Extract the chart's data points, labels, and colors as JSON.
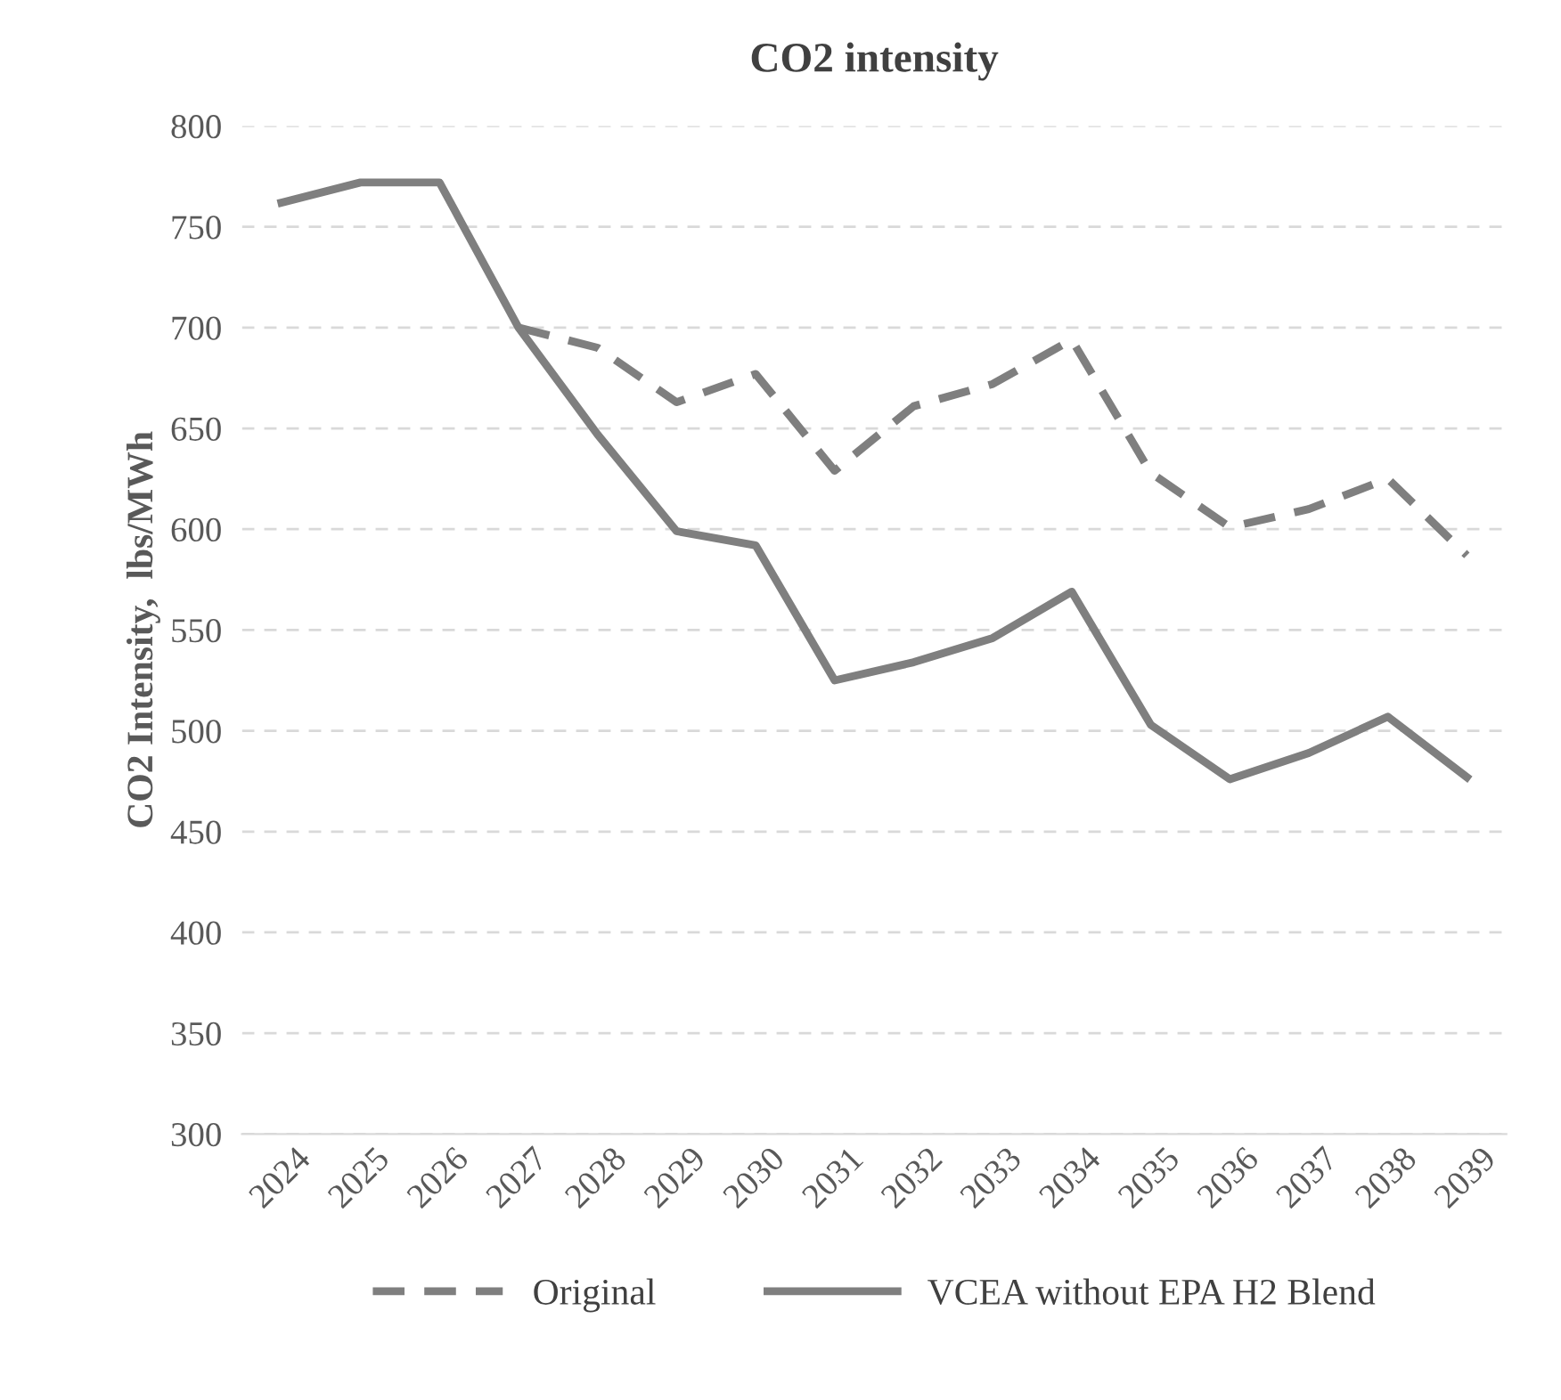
{
  "chart_data": {
    "type": "line",
    "title": "CO2 intensity",
    "ylabel": "CO2 Intensity,  lbs/MWh",
    "categories": [
      "2024",
      "2025",
      "2026",
      "2027",
      "2028",
      "2029",
      "2030",
      "2031",
      "2032",
      "2033",
      "2034",
      "2035",
      "2036",
      "2037",
      "2038",
      "2039"
    ],
    "series": [
      {
        "name": "Original",
        "color": "#7f7f7f",
        "line_style": "dashed",
        "values": [
          null,
          null,
          null,
          700,
          690,
          663,
          677,
          629,
          661,
          672,
          694,
          628,
          601,
          610,
          625,
          587
        ]
      },
      {
        "name": "VCEA without EPA H2 Blend",
        "color": "#7f7f7f",
        "line_style": "solid",
        "values": [
          762,
          772,
          772,
          700,
          647,
          599,
          592,
          525,
          534,
          546,
          569,
          503,
          476,
          489,
          507,
          477
        ]
      }
    ],
    "ylim": [
      300,
      800
    ],
    "yticks": [
      300,
      350,
      400,
      450,
      500,
      550,
      600,
      650,
      700,
      750,
      800
    ],
    "grid": "y",
    "legend": "bottom",
    "marker": "none"
  }
}
